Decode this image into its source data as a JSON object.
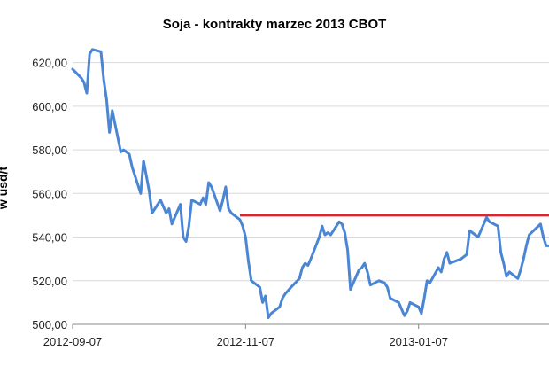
{
  "chart_data": {
    "type": "line",
    "title": "Soja - kontrakty marzec 2013 CBOT",
    "ylabel": "w usd/t",
    "yticks": [
      "500,00",
      "520,00",
      "540,00",
      "560,00",
      "580,00",
      "600,00",
      "620,00"
    ],
    "ylim": [
      500,
      630
    ],
    "xticks": [
      "2012-09-07",
      "2012-11-07",
      "2013-01-07"
    ],
    "xlim": [
      "2012-09-07",
      "2013-02-22"
    ],
    "grid": "horizontal",
    "legend": "none",
    "colors": {
      "series": "#4A86D4",
      "reference_line": "#E0242E",
      "grid": "#D9D9D9"
    },
    "reference_line": {
      "y": 550,
      "x_start": "2012-11-05",
      "x_end": "2013-02-22"
    },
    "series": [
      {
        "x": [
          "2012-09-07",
          "2012-09-10",
          "2012-09-11",
          "2012-09-12",
          "2012-09-13",
          "2012-09-14",
          "2012-09-17",
          "2012-09-18",
          "2012-09-19",
          "2012-09-20",
          "2012-09-21",
          "2012-09-24",
          "2012-09-25",
          "2012-09-26",
          "2012-09-27",
          "2012-09-28",
          "2012-10-01",
          "2012-10-02",
          "2012-10-03",
          "2012-10-04",
          "2012-10-05",
          "2012-10-08",
          "2012-10-09",
          "2012-10-10",
          "2012-10-11",
          "2012-10-12",
          "2012-10-15",
          "2012-10-16",
          "2012-10-17",
          "2012-10-18",
          "2012-10-19",
          "2012-10-22",
          "2012-10-23",
          "2012-10-24",
          "2012-10-25",
          "2012-10-26",
          "2012-10-29",
          "2012-10-30",
          "2012-10-31",
          "2012-11-01",
          "2012-11-02",
          "2012-11-05",
          "2012-11-06",
          "2012-11-07",
          "2012-11-08",
          "2012-11-09",
          "2012-11-12",
          "2012-11-13",
          "2012-11-14",
          "2012-11-15",
          "2012-11-16",
          "2012-11-19",
          "2012-11-20",
          "2012-11-21",
          "2012-11-23",
          "2012-11-26",
          "2012-11-27",
          "2012-11-28",
          "2012-11-29",
          "2012-11-30",
          "2012-12-03",
          "2012-12-04",
          "2012-12-05",
          "2012-12-06",
          "2012-12-07",
          "2012-12-10",
          "2012-12-11",
          "2012-12-12",
          "2012-12-13",
          "2012-12-14",
          "2012-12-17",
          "2012-12-18",
          "2012-12-19",
          "2012-12-20",
          "2012-12-21",
          "2012-12-24",
          "2012-12-26",
          "2012-12-27",
          "2012-12-28",
          "2012-12-31",
          "2013-01-02",
          "2013-01-03",
          "2013-01-04",
          "2013-01-07",
          "2013-01-08",
          "2013-01-09",
          "2013-01-10",
          "2013-01-11",
          "2013-01-14",
          "2013-01-15",
          "2013-01-16",
          "2013-01-17",
          "2013-01-18",
          "2013-01-22",
          "2013-01-23",
          "2013-01-24",
          "2013-01-25",
          "2013-01-28",
          "2013-01-29",
          "2013-01-30",
          "2013-01-31",
          "2013-02-01",
          "2013-02-04",
          "2013-02-05",
          "2013-02-06",
          "2013-02-07",
          "2013-02-08",
          "2013-02-11",
          "2013-02-12",
          "2013-02-13",
          "2013-02-14",
          "2013-02-15",
          "2013-02-19",
          "2013-02-20",
          "2013-02-21",
          "2013-02-22"
        ],
        "values": [
          617,
          613,
          611,
          606,
          624,
          626,
          625,
          612,
          603,
          588,
          598,
          579,
          580,
          579,
          578,
          572,
          560,
          575,
          568,
          561,
          551,
          557,
          554,
          551,
          553,
          546,
          555,
          540,
          538,
          545,
          557,
          555,
          558,
          555,
          565,
          563,
          552,
          557,
          563,
          553,
          551,
          548,
          545,
          540,
          529,
          520,
          517,
          510,
          513,
          503,
          505,
          508,
          512,
          514,
          517,
          521,
          526,
          528,
          527,
          530,
          540,
          545,
          541,
          542,
          541,
          547,
          546,
          542,
          534,
          516,
          525,
          526,
          528,
          524,
          518,
          520,
          519,
          517,
          512,
          510,
          504,
          506,
          510,
          508,
          505,
          512,
          520,
          519,
          526,
          524,
          530,
          533,
          528,
          530,
          531,
          532,
          543,
          540,
          543,
          546,
          549,
          547,
          545,
          533,
          528,
          522,
          524,
          521,
          525,
          530,
          536,
          541,
          546,
          540,
          536,
          536
        ]
      }
    ]
  }
}
